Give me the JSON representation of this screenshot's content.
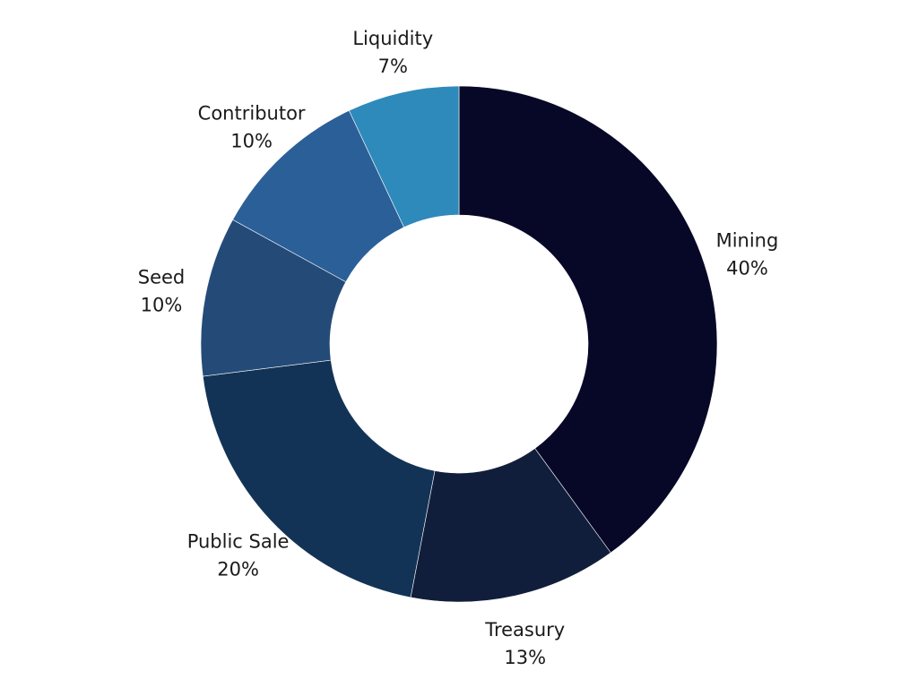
{
  "chart_data": {
    "type": "pie",
    "subtype": "donut",
    "title": "",
    "categories": [
      "Mining",
      "Treasury",
      "Public Sale",
      "Seed",
      "Contributor",
      "Liquidity"
    ],
    "values": [
      40,
      13,
      20,
      10,
      10,
      7
    ],
    "value_labels": [
      "40%",
      "13%",
      "20%",
      "10%",
      "10%",
      "7%"
    ],
    "colors": [
      "#070827",
      "#111e3b",
      "#133356",
      "#244b78",
      "#2b5f98",
      "#2e8aba"
    ],
    "start_angle_deg": 0,
    "direction": "clockwise",
    "legend": "none",
    "labels_position": "outside"
  }
}
